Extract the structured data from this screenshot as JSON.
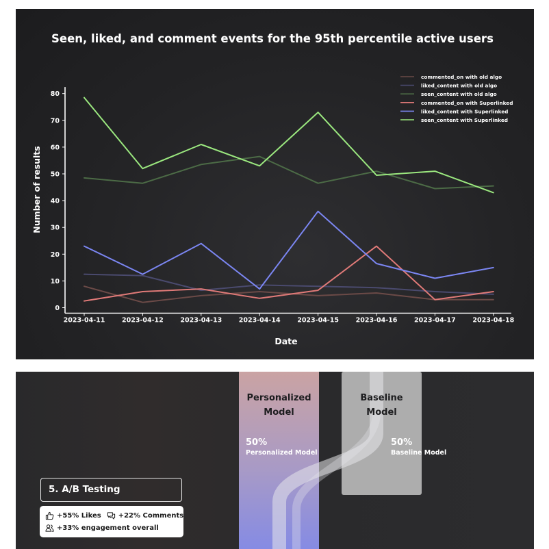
{
  "chart_data": {
    "type": "line",
    "title": "Seen, liked, and comment events for the 95th percentile active users",
    "xlabel": "Date",
    "ylabel": "Number of results",
    "x": [
      "2023-04-11",
      "2023-04-12",
      "2023-04-13",
      "2023-04-14",
      "2023-04-15",
      "2023-04-16",
      "2023-04-17",
      "2023-04-18"
    ],
    "ylim": [
      0,
      85
    ],
    "yticks": [
      0,
      10,
      20,
      30,
      40,
      50,
      60,
      70,
      80
    ],
    "grid": false,
    "legend_position": "top-right",
    "series": [
      {
        "name": "commented_on with old algo",
        "color": "#6b4a47",
        "values": [
          8,
          2,
          4.5,
          6,
          4.5,
          5.5,
          3,
          3
        ]
      },
      {
        "name": "liked_content with old algo",
        "color": "#4a4a6e",
        "values": [
          12.5,
          12,
          6.5,
          8.5,
          8,
          7.5,
          6,
          5
        ]
      },
      {
        "name": "seen_content with old algo",
        "color": "#4c6b46",
        "values": [
          48.5,
          46.5,
          53.5,
          56.5,
          46.5,
          51,
          44.5,
          45.5
        ]
      },
      {
        "name": "commented_on with Superlinked",
        "color": "#e07a78",
        "values": [
          2.5,
          6,
          7,
          3.5,
          6.5,
          23,
          3,
          6
        ]
      },
      {
        "name": "liked_content with Superlinked",
        "color": "#7b86f2",
        "values": [
          23,
          12.5,
          24,
          7,
          36,
          16.5,
          11,
          15
        ]
      },
      {
        "name": "seen_content with Superlinked",
        "color": "#9be87f",
        "values": [
          78.5,
          52,
          61,
          53,
          73,
          49.5,
          51,
          43
        ]
      }
    ]
  },
  "ab_testing": {
    "personalized": {
      "title_line1": "Personalized",
      "title_line2": "Model",
      "percent": "50%",
      "caption": "Personalized Model"
    },
    "baseline": {
      "title_line1": "Baseline",
      "title_line2": "Model",
      "percent": "50%",
      "caption": "Baseline Model"
    },
    "section_title": "5. A/B Testing",
    "metrics": {
      "likes": "+55% Likes",
      "comments": "+22% Comments",
      "engagement": "+33% engagement overall"
    },
    "colors": {
      "personalized_top": "#c9a3a6",
      "personalized_bottom": "#8a8ee6",
      "baseline": "#b8b8b8",
      "flow": "#e6e6ea"
    }
  }
}
